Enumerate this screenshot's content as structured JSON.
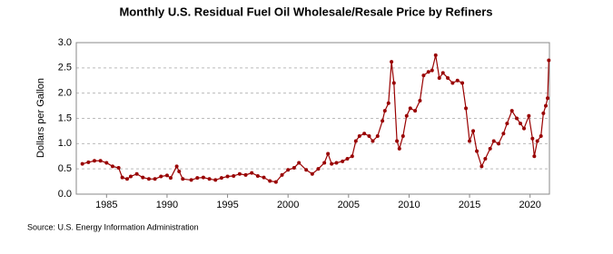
{
  "chart_data": {
    "type": "line",
    "title": "Monthly U.S. Residual Fuel Oil Wholesale/Resale Price by Refiners",
    "ylabel": "Dollars per Gallon",
    "source": "Source: U.S. Energy Information Administration",
    "color": "#990000",
    "x": [
      1983.0,
      1983.5,
      1984.0,
      1984.5,
      1985.0,
      1985.5,
      1986.0,
      1986.3,
      1986.7,
      1987.0,
      1987.5,
      1988.0,
      1988.5,
      1989.0,
      1989.5,
      1990.0,
      1990.3,
      1990.8,
      1991.0,
      1991.3,
      1992.0,
      1992.5,
      1993.0,
      1993.5,
      1994.0,
      1994.5,
      1995.0,
      1995.5,
      1996.0,
      1996.5,
      1997.0,
      1997.5,
      1998.0,
      1998.5,
      1999.0,
      1999.5,
      2000.0,
      2000.5,
      2000.9,
      2001.5,
      2002.0,
      2002.5,
      2003.0,
      2003.3,
      2003.6,
      2004.0,
      2004.5,
      2004.9,
      2005.3,
      2005.6,
      2005.9,
      2006.3,
      2006.7,
      2007.0,
      2007.4,
      2007.8,
      2008.0,
      2008.3,
      2008.55,
      2008.75,
      2009.0,
      2009.2,
      2009.5,
      2009.8,
      2010.1,
      2010.5,
      2010.9,
      2011.2,
      2011.6,
      2011.9,
      2012.2,
      2012.5,
      2012.8,
      2013.2,
      2013.6,
      2014.0,
      2014.4,
      2014.7,
      2015.0,
      2015.3,
      2015.6,
      2016.0,
      2016.3,
      2016.7,
      2017.0,
      2017.4,
      2017.8,
      2018.1,
      2018.5,
      2018.9,
      2019.2,
      2019.5,
      2019.9,
      2020.2,
      2020.35,
      2020.6,
      2020.9,
      2021.1,
      2021.3,
      2021.45,
      2021.55
    ],
    "values": [
      0.6,
      0.63,
      0.66,
      0.66,
      0.62,
      0.55,
      0.52,
      0.33,
      0.3,
      0.35,
      0.4,
      0.33,
      0.3,
      0.3,
      0.35,
      0.37,
      0.32,
      0.55,
      0.45,
      0.3,
      0.28,
      0.32,
      0.33,
      0.3,
      0.28,
      0.32,
      0.35,
      0.36,
      0.4,
      0.38,
      0.42,
      0.36,
      0.33,
      0.26,
      0.24,
      0.38,
      0.48,
      0.52,
      0.62,
      0.48,
      0.4,
      0.5,
      0.62,
      0.8,
      0.6,
      0.62,
      0.65,
      0.7,
      0.75,
      1.05,
      1.15,
      1.2,
      1.15,
      1.05,
      1.15,
      1.45,
      1.65,
      1.8,
      2.62,
      2.2,
      1.05,
      0.9,
      1.15,
      1.55,
      1.7,
      1.65,
      1.85,
      2.35,
      2.42,
      2.45,
      2.75,
      2.3,
      2.4,
      2.3,
      2.2,
      2.25,
      2.2,
      1.7,
      1.05,
      1.25,
      0.85,
      0.55,
      0.7,
      0.9,
      1.05,
      1.0,
      1.2,
      1.4,
      1.65,
      1.5,
      1.4,
      1.3,
      1.55,
      1.1,
      0.75,
      1.05,
      1.15,
      1.6,
      1.75,
      1.9,
      2.65
    ],
    "xlim": [
      1982.5,
      2021.6
    ],
    "xticks": [
      1985,
      1990,
      1995,
      2000,
      2005,
      2010,
      2015,
      2020
    ],
    "ylim": [
      0,
      3
    ],
    "yticks": [
      {
        "value": 0,
        "label": "0.0"
      },
      0.5,
      {
        "value": 1,
        "label": "1.0"
      },
      1.5,
      {
        "value": 2,
        "label": "2.0"
      },
      2.5,
      {
        "value": 3,
        "label": "3.0"
      }
    ],
    "grid": true
  }
}
